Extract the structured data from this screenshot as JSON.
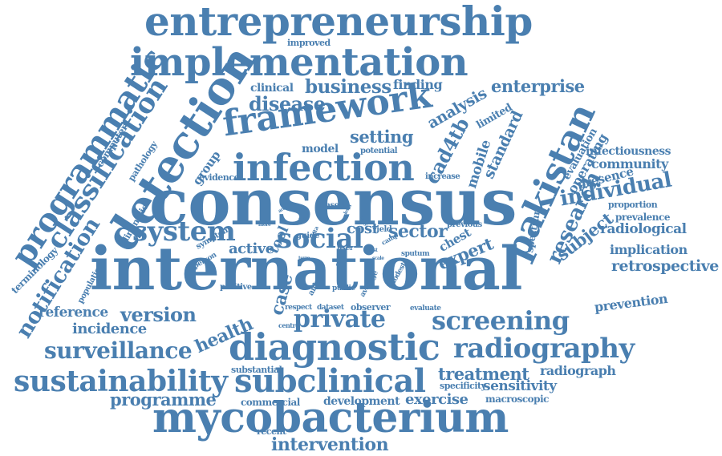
{
  "color": "#4a7fb0",
  "words": {
    "entrepreneurship": "entrepreneurship",
    "implementation": "implementation",
    "improved": "improved",
    "programmatic": "programmatic",
    "computer": "computer",
    "pathology": "pathology",
    "classification": "classification",
    "detection": "detection",
    "clinical": "clinical",
    "business": "business",
    "finding": "finding",
    "disease": "disease",
    "analysis": "analysis",
    "enterprise": "enterprise",
    "framework": "framework",
    "limited": "limited",
    "pakistan": "pakistan",
    "standard": "standard",
    "cad4tb": "cad4tb",
    "setting": "setting",
    "model": "model",
    "potential": "potential",
    "mobile": "mobile",
    "evaluation": "evaluation",
    "operating": "operating",
    "infectiousness": "infectiousness",
    "community": "community",
    "presence": "presence",
    "infection": "infection",
    "group": "group",
    "evidence": "evidence",
    "increase": "increase",
    "consensus": "consensus",
    "research": "research",
    "individual": "individual",
    "proportion": "proportion",
    "prevalence": "prevalence",
    "radiological": "radiological",
    "implication": "implication",
    "retrospective": "retrospective",
    "subject": "subject",
    "spectrum": "spectrum",
    "terminology": "terminology",
    "notification": "notification",
    "elimination": "elimination",
    "system": "system",
    "social": "social",
    "sector": "sector",
    "chest": "chest",
    "expert": "expert",
    "based": "based",
    "previous": "previous",
    "symptom": "symptom",
    "guide": "guide",
    "cost": "cost",
    "yield": "yield",
    "tool": "tool",
    "active": "active",
    "user": "user",
    "camp": "camp",
    "sputum": "sputum",
    "person": "person",
    "population": "population",
    "positive": "positive",
    "international": "international",
    "case": "case",
    "aided": "aided",
    "public": "public",
    "average": "average",
    "modest": "modest",
    "respect": "respect",
    "dataset": "dataset",
    "observer": "observer",
    "evaluate": "evaluate",
    "prevention": "prevention",
    "reference": "reference",
    "version": "version",
    "incidence": "incidence",
    "health": "health",
    "private": "private",
    "screening": "screening",
    "centre": "centre",
    "surveillance": "surveillance",
    "diagnostic": "diagnostic",
    "radiography": "radiography",
    "sustainability": "sustainability",
    "substantial": "substantial",
    "subclinical": "subclinical",
    "treatment": "treatment",
    "radiograph": "radiograph",
    "specificity": "specificity",
    "sensitivity": "sensitivity",
    "programme": "programme",
    "commercial": "commercial",
    "development": "development",
    "exercise": "exercise",
    "macroscopic": "macroscopic",
    "mycobacterium": "mycobacterium",
    "recent": "recent",
    "intervention": "intervention",
    "area": "area",
    "more": "more",
    "tail": "tail",
    "care": "care",
    "scale": "scale",
    "lost": "lost",
    "term": "term",
    "data": "data",
    "level": "level",
    "early": "early"
  }
}
